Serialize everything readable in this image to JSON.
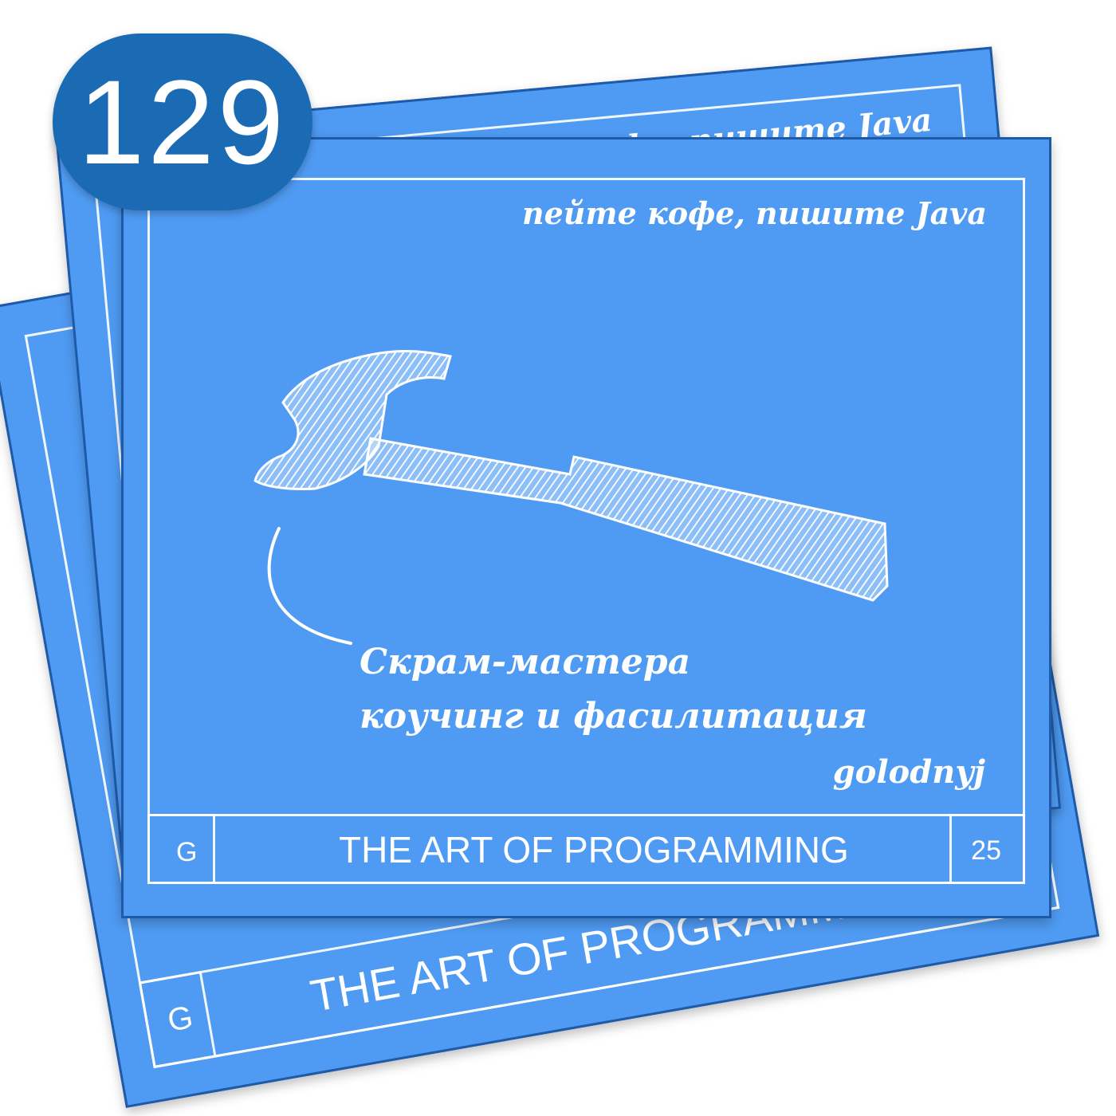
{
  "badge": {
    "number": "129"
  },
  "front_card": {
    "tagline": "пейте кофе, пишите Java",
    "caption_line1": "Скрам-мастера",
    "caption_line2": "коучинг и фасилитация",
    "author": "golodnyj",
    "footer_left": "G",
    "footer_title": "THE ART OF PROGRAMMING",
    "footer_right": "25",
    "illustration_icon": "hammer-icon"
  },
  "back_card_top": {
    "tagline": "пейте кофе, пишите Java"
  },
  "back_card_bottom": {
    "footer_left": "G",
    "footer_title": "THE ART OF PROGRAMMING"
  },
  "colors": {
    "card_blue": "#4f9bf3",
    "card_border": "#1f5aa8",
    "badge_blue": "#1b6bb4",
    "ink": "#ffffff"
  }
}
